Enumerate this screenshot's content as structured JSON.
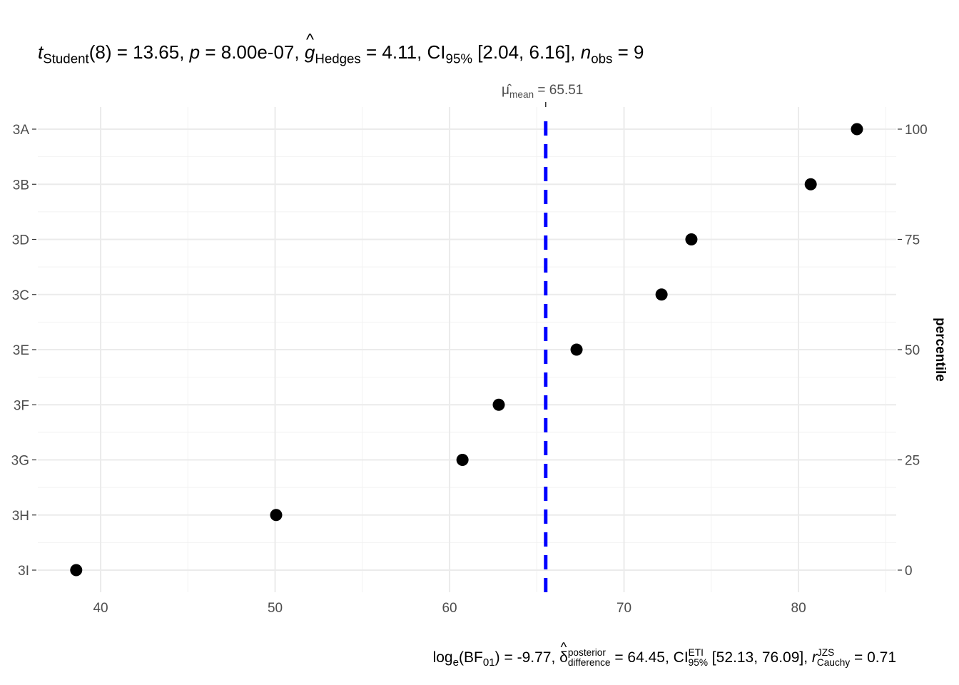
{
  "title": {
    "t": "t",
    "t_sub": "Student",
    "df": "(8) = 13.65, ",
    "p": "p",
    "p_val": " = 8.00e-07, ",
    "g": "g",
    "g_sub": "Hedges",
    "g_val": " = 4.11, CI",
    "ci_sub": "95%",
    "ci_val": " [2.04, 6.16], ",
    "n": "n",
    "n_sub": "obs",
    "n_val": " = 9"
  },
  "footer": {
    "log": "log",
    "log_sub": "e",
    "bf": "(BF",
    "bf_sub": "01",
    "bf_val": ") = -9.77, ",
    "delta": "δ",
    "delta_sup": "posterior",
    "delta_sub": "difference",
    "delta_val": " = 64.45, CI",
    "ci_sup": "ETI",
    "ci_sub": "95%",
    "ci_val": " [52.13, 76.09], ",
    "r": "r",
    "r_sup": "JZS",
    "r_sub": "Cauchy",
    "r_val": " = 0.71"
  },
  "chart_data": {
    "type": "scatter",
    "title": "t_Student(8) = 13.65, p = 8.00e-07, g_Hedges = 4.11, CI95% [2.04, 6.16], n_obs = 9",
    "categories": [
      "3A",
      "3B",
      "3D",
      "3C",
      "3E",
      "3F",
      "3G",
      "3H",
      "3I"
    ],
    "values": [
      83.35,
      80.7,
      73.86,
      72.15,
      67.28,
      62.82,
      60.74,
      50.06,
      38.6
    ],
    "xlim": [
      36.4,
      85.6
    ],
    "xticks": [
      40,
      50,
      60,
      70,
      80
    ],
    "y2label": "percentile",
    "y2ticks": [
      0,
      25,
      50,
      75,
      100
    ],
    "mean": 65.51,
    "mean_label": "μ̂",
    "mean_label_sub": "mean",
    "mean_label_val": " = 65.51",
    "mean_line_color": "#0000ff",
    "point_color": "#000000",
    "grid": true
  }
}
